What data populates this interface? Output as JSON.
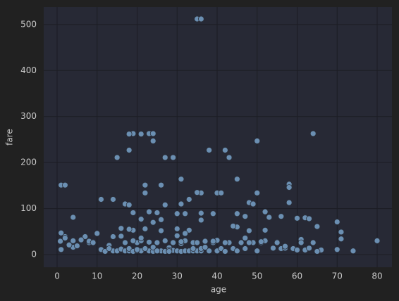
{
  "chart_data": {
    "type": "scatter",
    "x_label": "age",
    "y_label": "fare",
    "color": "#6b8fb2",
    "grid": true,
    "xlim": [
      -3.35,
      83.7
    ],
    "ylim": [
      -27.5,
      538
    ],
    "xticks": [
      0,
      10,
      20,
      30,
      40,
      50,
      60,
      70,
      80
    ],
    "yticks": [
      0,
      100,
      200,
      300,
      400,
      500
    ],
    "x": [
      35,
      36,
      64,
      50,
      19,
      18,
      21,
      23,
      24,
      24,
      18,
      38,
      42,
      43,
      15,
      27,
      29,
      31,
      45,
      1,
      2,
      22,
      26,
      58,
      58,
      22,
      36,
      35,
      40,
      41,
      50,
      11,
      14,
      33,
      48,
      17,
      18,
      27,
      31,
      49,
      58,
      4,
      19,
      21,
      23,
      25,
      30,
      32,
      36,
      39,
      45,
      47,
      52,
      53,
      56,
      60,
      62,
      63,
      65,
      70,
      71,
      80,
      74,
      71,
      70,
      66,
      61,
      55,
      45,
      1,
      1,
      2,
      3,
      4,
      4,
      5,
      6,
      7,
      8,
      9,
      10,
      11,
      12,
      13,
      14,
      15,
      16,
      16,
      17,
      17,
      18,
      18,
      19,
      19,
      20,
      20,
      21,
      21,
      22,
      22,
      23,
      23,
      24,
      24,
      25,
      25,
      26,
      26,
      27,
      27,
      28,
      28,
      29,
      29,
      30,
      30,
      31,
      31,
      32,
      32,
      33,
      33,
      34,
      34,
      35,
      35,
      36,
      36,
      37,
      38,
      39,
      40,
      40,
      41,
      42,
      43,
      44,
      45,
      46,
      47,
      48,
      49,
      50,
      51,
      52,
      54,
      55,
      56,
      57,
      59,
      60,
      61,
      62,
      63,
      64,
      65,
      3,
      8,
      14,
      19,
      22,
      25,
      28,
      31,
      34,
      37,
      42,
      47,
      51,
      24,
      26,
      28,
      30,
      32,
      16,
      18,
      20,
      21,
      2,
      6,
      9,
      13,
      36,
      39,
      44,
      48,
      52,
      57,
      0.8
    ],
    "y": [
      512,
      512,
      263,
      247,
      263,
      262,
      262,
      263,
      263,
      247,
      227,
      227,
      227,
      211,
      211,
      211,
      211,
      164,
      164,
      151,
      151,
      151,
      151,
      153,
      146,
      134,
      134,
      135,
      134,
      134,
      134,
      120,
      120,
      120,
      113,
      110,
      108,
      108,
      110,
      110,
      113,
      81,
      91,
      77,
      93,
      91,
      89,
      89,
      90,
      89,
      89,
      83,
      93,
      81,
      83,
      79,
      80,
      78,
      61,
      71,
      49,
      30,
      8,
      34,
      11,
      10,
      33,
      27,
      60,
      47,
      11,
      39,
      21,
      30,
      16,
      19,
      31,
      39,
      26,
      27,
      46,
      11,
      7,
      20,
      8,
      8,
      12,
      57,
      8,
      26,
      8,
      13,
      7,
      53,
      9,
      26,
      8,
      30,
      13,
      56,
      8,
      27,
      7,
      16,
      8,
      26,
      8,
      52,
      7,
      30,
      8,
      15,
      9,
      26,
      8,
      56,
      7,
      24,
      8,
      30,
      8,
      53,
      26,
      8,
      8,
      26,
      8,
      13,
      29,
      8,
      26,
      8,
      31,
      13,
      7,
      26,
      13,
      8,
      26,
      13,
      52,
      26,
      8,
      26,
      30,
      14,
      26,
      13,
      14,
      13,
      10,
      26,
      10,
      14,
      26,
      7,
      21,
      29,
      39,
      30,
      13,
      8,
      10,
      28,
      13,
      16,
      26,
      36,
      28,
      70,
      76,
      7,
      41,
      46,
      40,
      55,
      11,
      36,
      36,
      32,
      26,
      13,
      75,
      29,
      62,
      26,
      53,
      18,
      29
    ]
  }
}
